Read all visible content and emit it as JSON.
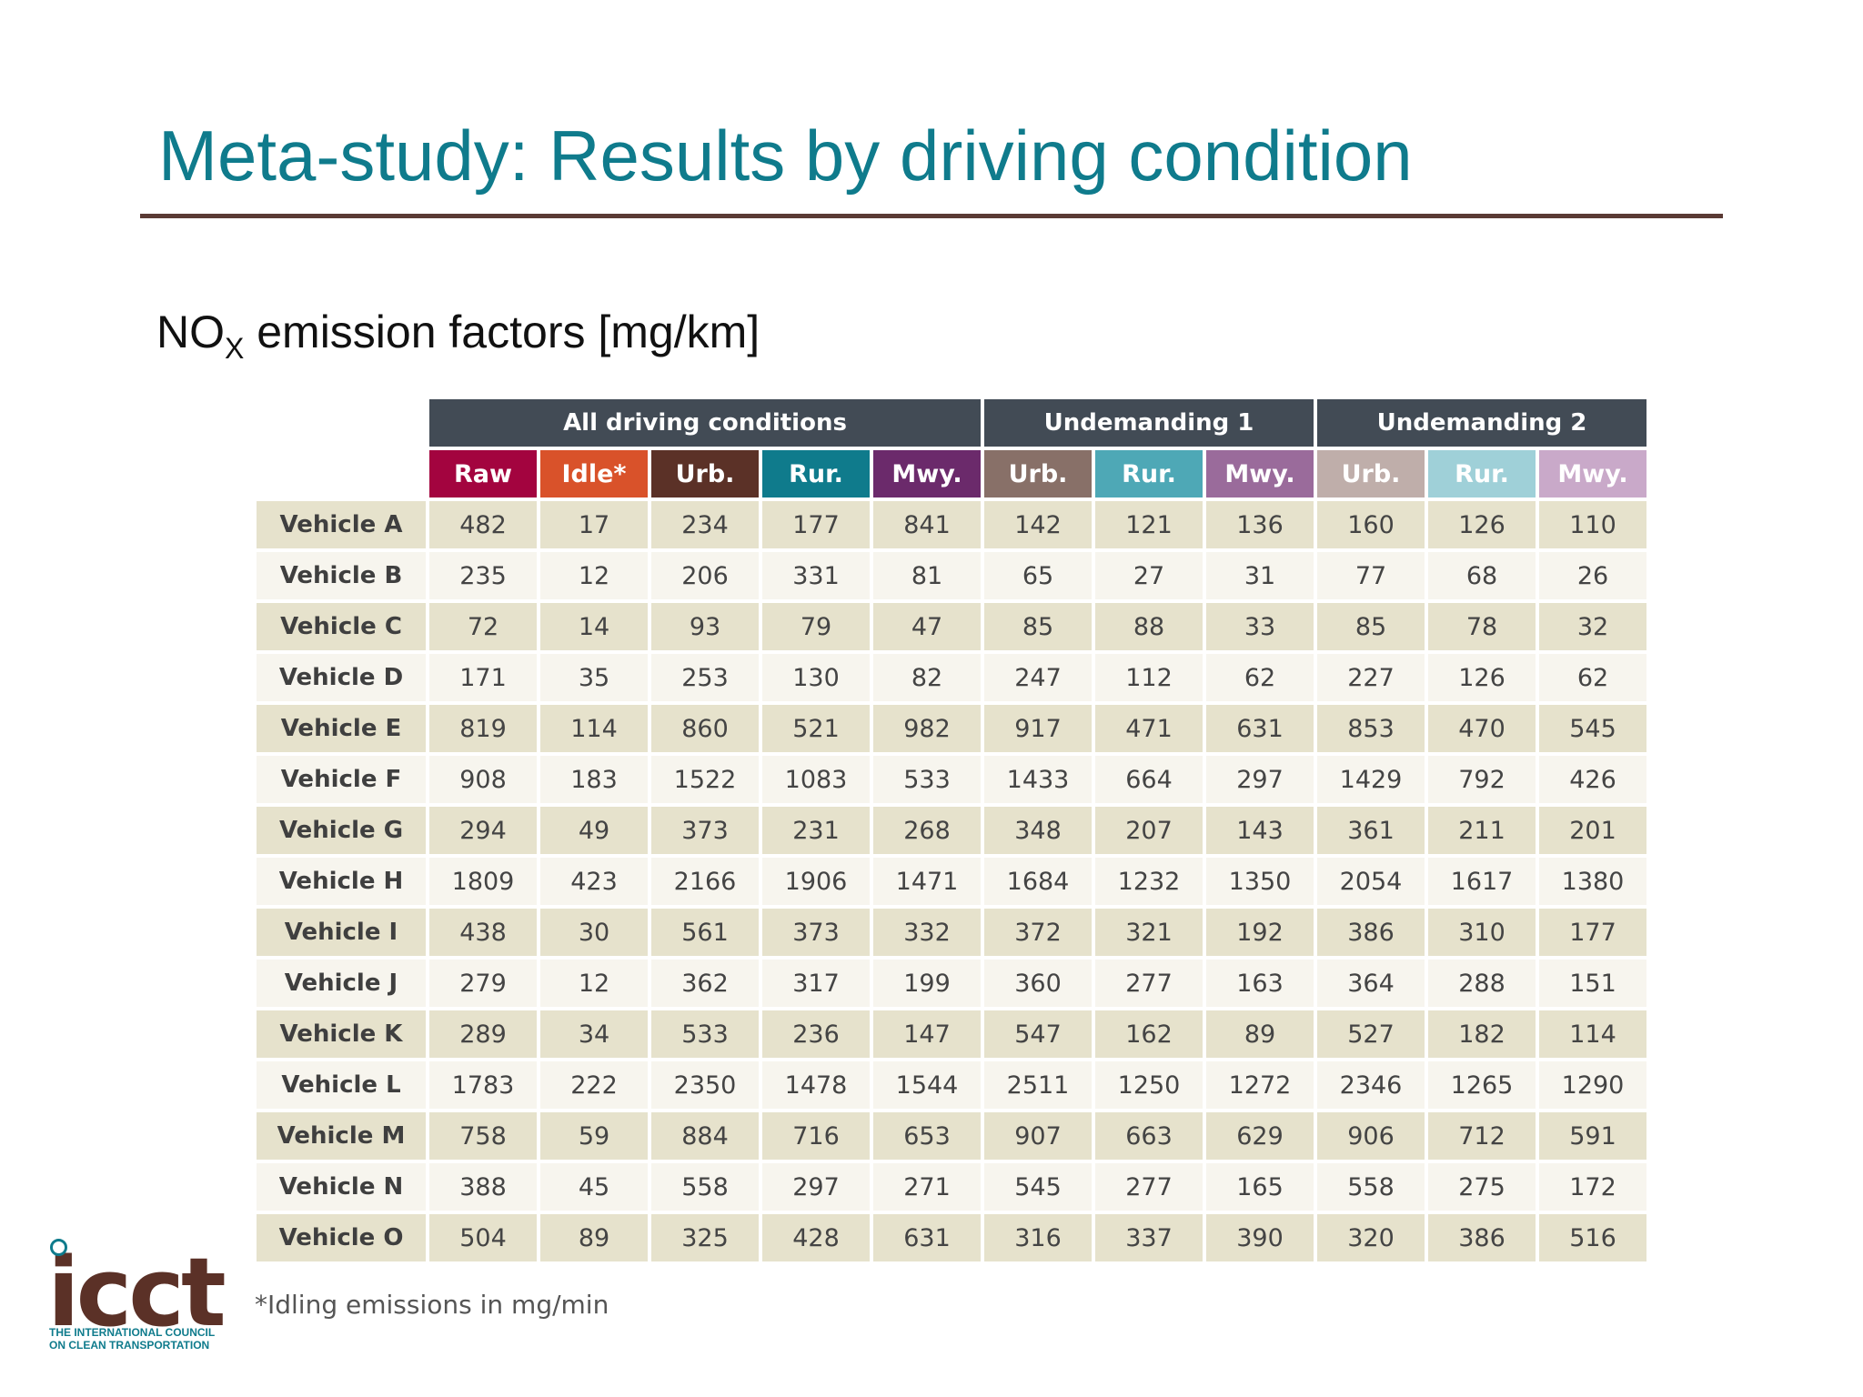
{
  "slide": {
    "title": "Meta-study: Results by driving condition",
    "subtitle_main": "NO",
    "subtitle_sub": "X",
    "subtitle_rest": " emission factors [mg/km]"
  },
  "table": {
    "groups": [
      "All driving conditions",
      "Undemanding 1",
      "Undemanding 2"
    ],
    "group_spans": [
      5,
      3,
      3
    ],
    "columns": [
      {
        "label": "Raw",
        "color": "#a3043f"
      },
      {
        "label": "Idle*",
        "color": "#d9522a"
      },
      {
        "label": "Urb.",
        "color": "#5b3127"
      },
      {
        "label": "Rur.",
        "color": "#0f7b8c"
      },
      {
        "label": "Mwy.",
        "color": "#6b2a6b"
      },
      {
        "label": "Urb.",
        "color": "#887068"
      },
      {
        "label": "Rur.",
        "color": "#4ea8b6"
      },
      {
        "label": "Mwy.",
        "color": "#9a6b9b"
      },
      {
        "label": "Urb.",
        "color": "#bfaeaa"
      },
      {
        "label": "Rur.",
        "color": "#9fd0d8"
      },
      {
        "label": "Mwy.",
        "color": "#c9a9c9"
      }
    ],
    "rows": [
      {
        "name": "Vehicle A",
        "values": [
          "482",
          "17",
          "234",
          "177",
          "841",
          "142",
          "121",
          "136",
          "160",
          "126",
          "110"
        ]
      },
      {
        "name": "Vehicle B",
        "values": [
          "235",
          "12",
          "206",
          "331",
          "81",
          "65",
          "27",
          "31",
          "77",
          "68",
          "26"
        ]
      },
      {
        "name": "Vehicle C",
        "values": [
          "72",
          "14",
          "93",
          "79",
          "47",
          "85",
          "88",
          "33",
          "85",
          "78",
          "32"
        ]
      },
      {
        "name": "Vehicle D",
        "values": [
          "171",
          "35",
          "253",
          "130",
          "82",
          "247",
          "112",
          "62",
          "227",
          "126",
          "62"
        ]
      },
      {
        "name": "Vehicle E",
        "values": [
          "819",
          "114",
          "860",
          "521",
          "982",
          "917",
          "471",
          "631",
          "853",
          "470",
          "545"
        ]
      },
      {
        "name": "Vehicle F",
        "values": [
          "908",
          "183",
          "1522",
          "1083",
          "533",
          "1433",
          "664",
          "297",
          "1429",
          "792",
          "426"
        ]
      },
      {
        "name": "Vehicle G",
        "values": [
          "294",
          "49",
          "373",
          "231",
          "268",
          "348",
          "207",
          "143",
          "361",
          "211",
          "201"
        ]
      },
      {
        "name": "Vehicle H",
        "values": [
          "1809",
          "423",
          "2166",
          "1906",
          "1471",
          "1684",
          "1232",
          "1350",
          "2054",
          "1617",
          "1380"
        ]
      },
      {
        "name": "Vehicle I",
        "values": [
          "438",
          "30",
          "561",
          "373",
          "332",
          "372",
          "321",
          "192",
          "386",
          "310",
          "177"
        ]
      },
      {
        "name": "Vehicle J",
        "values": [
          "279",
          "12",
          "362",
          "317",
          "199",
          "360",
          "277",
          "163",
          "364",
          "288",
          "151"
        ]
      },
      {
        "name": "Vehicle K",
        "values": [
          "289",
          "34",
          "533",
          "236",
          "147",
          "547",
          "162",
          "89",
          "527",
          "182",
          "114"
        ]
      },
      {
        "name": "Vehicle L",
        "values": [
          "1783",
          "222",
          "2350",
          "1478",
          "1544",
          "2511",
          "1250",
          "1272",
          "2346",
          "1265",
          "1290"
        ]
      },
      {
        "name": "Vehicle M",
        "values": [
          "758",
          "59",
          "884",
          "716",
          "653",
          "907",
          "663",
          "629",
          "906",
          "712",
          "591"
        ]
      },
      {
        "name": "Vehicle N",
        "values": [
          "388",
          "45",
          "558",
          "297",
          "271",
          "545",
          "277",
          "165",
          "558",
          "275",
          "172"
        ]
      },
      {
        "name": "Vehicle O",
        "values": [
          "504",
          "89",
          "325",
          "428",
          "631",
          "316",
          "337",
          "390",
          "320",
          "386",
          "516"
        ]
      }
    ],
    "footnote": "*Idling emissions in mg/min"
  },
  "logo": {
    "word": "icct",
    "tagline_1": "THE INTERNATIONAL COUNCIL",
    "tagline_2": "ON CLEAN TRANSPORTATION",
    "colors": {
      "word": "#5b3127",
      "accent": "#0f7b8c"
    }
  },
  "colors": {
    "title": "#0f7b8c",
    "rule": "#5a3a34",
    "group_header": "#424b55",
    "row_odd": "#e6e2cc",
    "row_even": "#f7f5ee"
  }
}
